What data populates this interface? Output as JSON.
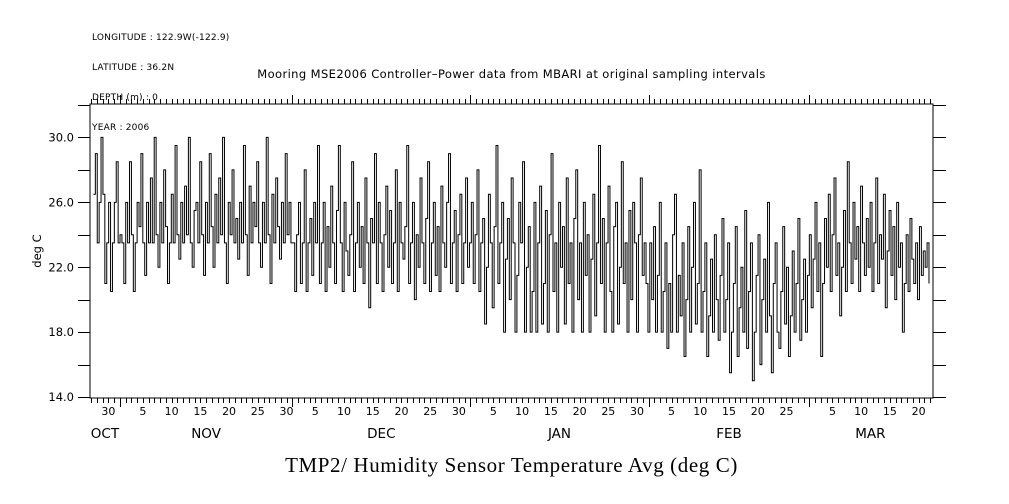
{
  "metadata": {
    "lines": [
      "LONGITUDE : 122.9W(-122.9)",
      "LATITUDE : 36.2N",
      "DEPTH (m) : 0",
      "YEAR : 2006"
    ]
  },
  "chart_data": {
    "type": "line",
    "line_style": "step",
    "grid": false,
    "legend": "none",
    "title": "Mooring MSE2006 Controller–Power data from MBARI at original sampling intervals",
    "ylabel": "deg C",
    "ylim": [
      13.94,
      32.06
    ],
    "y_axis": {
      "tick_step": 2,
      "tick_min": 14,
      "tick_max": 32,
      "tick_labels": [
        {
          "label": "30.0",
          "value": 30
        },
        {
          "label": "26.0",
          "value": 26
        },
        {
          "label": "22.0",
          "value": 22
        },
        {
          "label": "18.0",
          "value": 18
        },
        {
          "label": "14.0",
          "value": 14
        }
      ]
    },
    "x_axis": {
      "total_days": 146.7,
      "first_midnight_day": 0.2,
      "month_boundaries": [
        5.2,
        35.2,
        66.2,
        97.2,
        125.2
      ],
      "month_labels": [
        {
          "label": "OCT",
          "day": 2.6
        },
        {
          "label": "NOV",
          "day": 20.2
        },
        {
          "label": "DEC",
          "day": 50.7
        },
        {
          "label": "JAN",
          "day": 81.7
        },
        {
          "label": "FEB",
          "day": 111.2
        },
        {
          "label": "MAR",
          "day": 135.8
        }
      ],
      "day_tick_labels": [
        {
          "label": "30",
          "day": 3.2
        },
        {
          "label": "5",
          "day": 9.2
        },
        {
          "label": "10",
          "day": 14.2
        },
        {
          "label": "15",
          "day": 19.2
        },
        {
          "label": "20",
          "day": 24.2
        },
        {
          "label": "25",
          "day": 29.2
        },
        {
          "label": "30",
          "day": 34.2
        },
        {
          "label": "5",
          "day": 39.2
        },
        {
          "label": "10",
          "day": 44.2
        },
        {
          "label": "15",
          "day": 49.2
        },
        {
          "label": "20",
          "day": 54.2
        },
        {
          "label": "25",
          "day": 59.2
        },
        {
          "label": "30",
          "day": 64.2
        },
        {
          "label": "5",
          "day": 70.2
        },
        {
          "label": "10",
          "day": 75.2
        },
        {
          "label": "15",
          "day": 80.2
        },
        {
          "label": "20",
          "day": 85.2
        },
        {
          "label": "25",
          "day": 90.2
        },
        {
          "label": "30",
          "day": 95.2
        },
        {
          "label": "5",
          "day": 101.2
        },
        {
          "label": "10",
          "day": 106.2
        },
        {
          "label": "15",
          "day": 111.2
        },
        {
          "label": "20",
          "day": 116.2
        },
        {
          "label": "25",
          "day": 121.2
        },
        {
          "label": "5",
          "day": 129.2
        },
        {
          "label": "10",
          "day": 134.2
        },
        {
          "label": "15",
          "day": 139.2
        },
        {
          "label": "20",
          "day": 144.2
        }
      ]
    },
    "series": [
      {
        "name": "TMP2/ Humidity Sensor Temperature Avg (deg C)",
        "samples_per_day": 3,
        "data_start_day": 0.6,
        "data_end_day": 146.0,
        "values": [
          26.5,
          29,
          23.5,
          26,
          30,
          26.5,
          21,
          23.5,
          26,
          20.5,
          23.5,
          26,
          28.5,
          23.5,
          24,
          23.5,
          21,
          26,
          23.5,
          28.5,
          24,
          20.5,
          23.5,
          26,
          24.5,
          29,
          23.5,
          21.5,
          26,
          23.5,
          27.5,
          23.5,
          30,
          24,
          22,
          26,
          23.5,
          28,
          24.5,
          21,
          23.5,
          26.5,
          23.5,
          29.5,
          24,
          22.5,
          26,
          23.5,
          27,
          24,
          30,
          23.5,
          22,
          25.5,
          26,
          23.5,
          28.5,
          24,
          21.5,
          26,
          23.5,
          29,
          24.5,
          22,
          26.5,
          23.5,
          27.5,
          24,
          30,
          23.5,
          21,
          26,
          24,
          28,
          23.5,
          25,
          22.5,
          26,
          23.5,
          29.5,
          24,
          21.5,
          27,
          23.5,
          26,
          24.5,
          28.5,
          23.5,
          22,
          26,
          23.5,
          30,
          24,
          21,
          26.5,
          23.5,
          27.5,
          24.5,
          22.5,
          26,
          23.5,
          29,
          24,
          26,
          23.5,
          23.5,
          20.5,
          24,
          26,
          21,
          23.5,
          28,
          20.5,
          23.5,
          25,
          21.5,
          26,
          23.5,
          29.5,
          21,
          23.5,
          26,
          20.5,
          24.5,
          22,
          27,
          23.5,
          21,
          25.5,
          29.5,
          23.5,
          20.5,
          26,
          23,
          21.5,
          24,
          28.5,
          20.5,
          23.5,
          26,
          22,
          24.5,
          21,
          27.5,
          23.5,
          19.5,
          25,
          23.5,
          29,
          21,
          26,
          23.5,
          20.5,
          24,
          27,
          22,
          25.5,
          21,
          23.5,
          28,
          20.5,
          26,
          23.5,
          22.5,
          24.5,
          29.5,
          21,
          23.5,
          26,
          20,
          24,
          22,
          27.5,
          23.5,
          21,
          25,
          28.5,
          20.5,
          23.5,
          26,
          21.5,
          24.5,
          20.5,
          27,
          23.5,
          22,
          26,
          29,
          21,
          23.5,
          25.5,
          20.5,
          24,
          26.5,
          21,
          23.5,
          27.5,
          22,
          23.5,
          26,
          21,
          24,
          28,
          20.5,
          23.5,
          25,
          18.5,
          22,
          26.5,
          23.5,
          19.5,
          24.5,
          29.5,
          21,
          23.5,
          26,
          18,
          22.5,
          25,
          20,
          27.5,
          23.5,
          18,
          21.5,
          26,
          23.5,
          28.5,
          18,
          22,
          24.5,
          18,
          20.5,
          26,
          18,
          23.5,
          27,
          18.5,
          21,
          25.5,
          18,
          24,
          29,
          20.5,
          23.5,
          18,
          26,
          22,
          24.5,
          18.5,
          27.5,
          21,
          23.5,
          18,
          25,
          28,
          20,
          23.5,
          18,
          26,
          21.5,
          24,
          18,
          22.5,
          26.5,
          19,
          23.5,
          29.5,
          21,
          25,
          18,
          23.5,
          27,
          20.5,
          18,
          24.5,
          26,
          18.5,
          22,
          28.5,
          21,
          23.5,
          18,
          25.5,
          20,
          26,
          23.5,
          18,
          24,
          27.5,
          21.5,
          23.5,
          21,
          18,
          23.5,
          20,
          24.5,
          18,
          21.5,
          26,
          18,
          20.5,
          23.5,
          17,
          21,
          18,
          24,
          26.5,
          18,
          21.5,
          19,
          23.5,
          16.5,
          20,
          24.5,
          18,
          22,
          26,
          18.5,
          21,
          28,
          18,
          20.5,
          23.5,
          16.5,
          19,
          22.5,
          18,
          24,
          20,
          17.5,
          21.5,
          25,
          18,
          20,
          23.5,
          15.5,
          18,
          21,
          24.5,
          16.5,
          19.5,
          22,
          18,
          25.5,
          17,
          20.5,
          23.5,
          15,
          18,
          21.5,
          24,
          16,
          20,
          22.5,
          18,
          26,
          19,
          15.5,
          21,
          23.5,
          18,
          17,
          20.5,
          24.5,
          18.5,
          22,
          16.5,
          19,
          23,
          18,
          21,
          25,
          17.5,
          20,
          22.5,
          18,
          21.5,
          24,
          19.5,
          22.5,
          26,
          20.5,
          23.5,
          16.5,
          21,
          25,
          22,
          26.5,
          20.5,
          24,
          27.5,
          21.5,
          23.5,
          19,
          22,
          25.5,
          20.5,
          28.5,
          23.5,
          21,
          26,
          22.5,
          24.5,
          20.5,
          27,
          23.5,
          21.5,
          25,
          22,
          26,
          20.5,
          23.5,
          27.5,
          21,
          24,
          22.5,
          26.5,
          19.5,
          23,
          25.5,
          21.5,
          24.5,
          20,
          26,
          22,
          23.5,
          18,
          21,
          24,
          20.5,
          25,
          22.5,
          21,
          23.5,
          20,
          24.5,
          21.5,
          23,
          22,
          23.5,
          21
        ]
      }
    ]
  }
}
